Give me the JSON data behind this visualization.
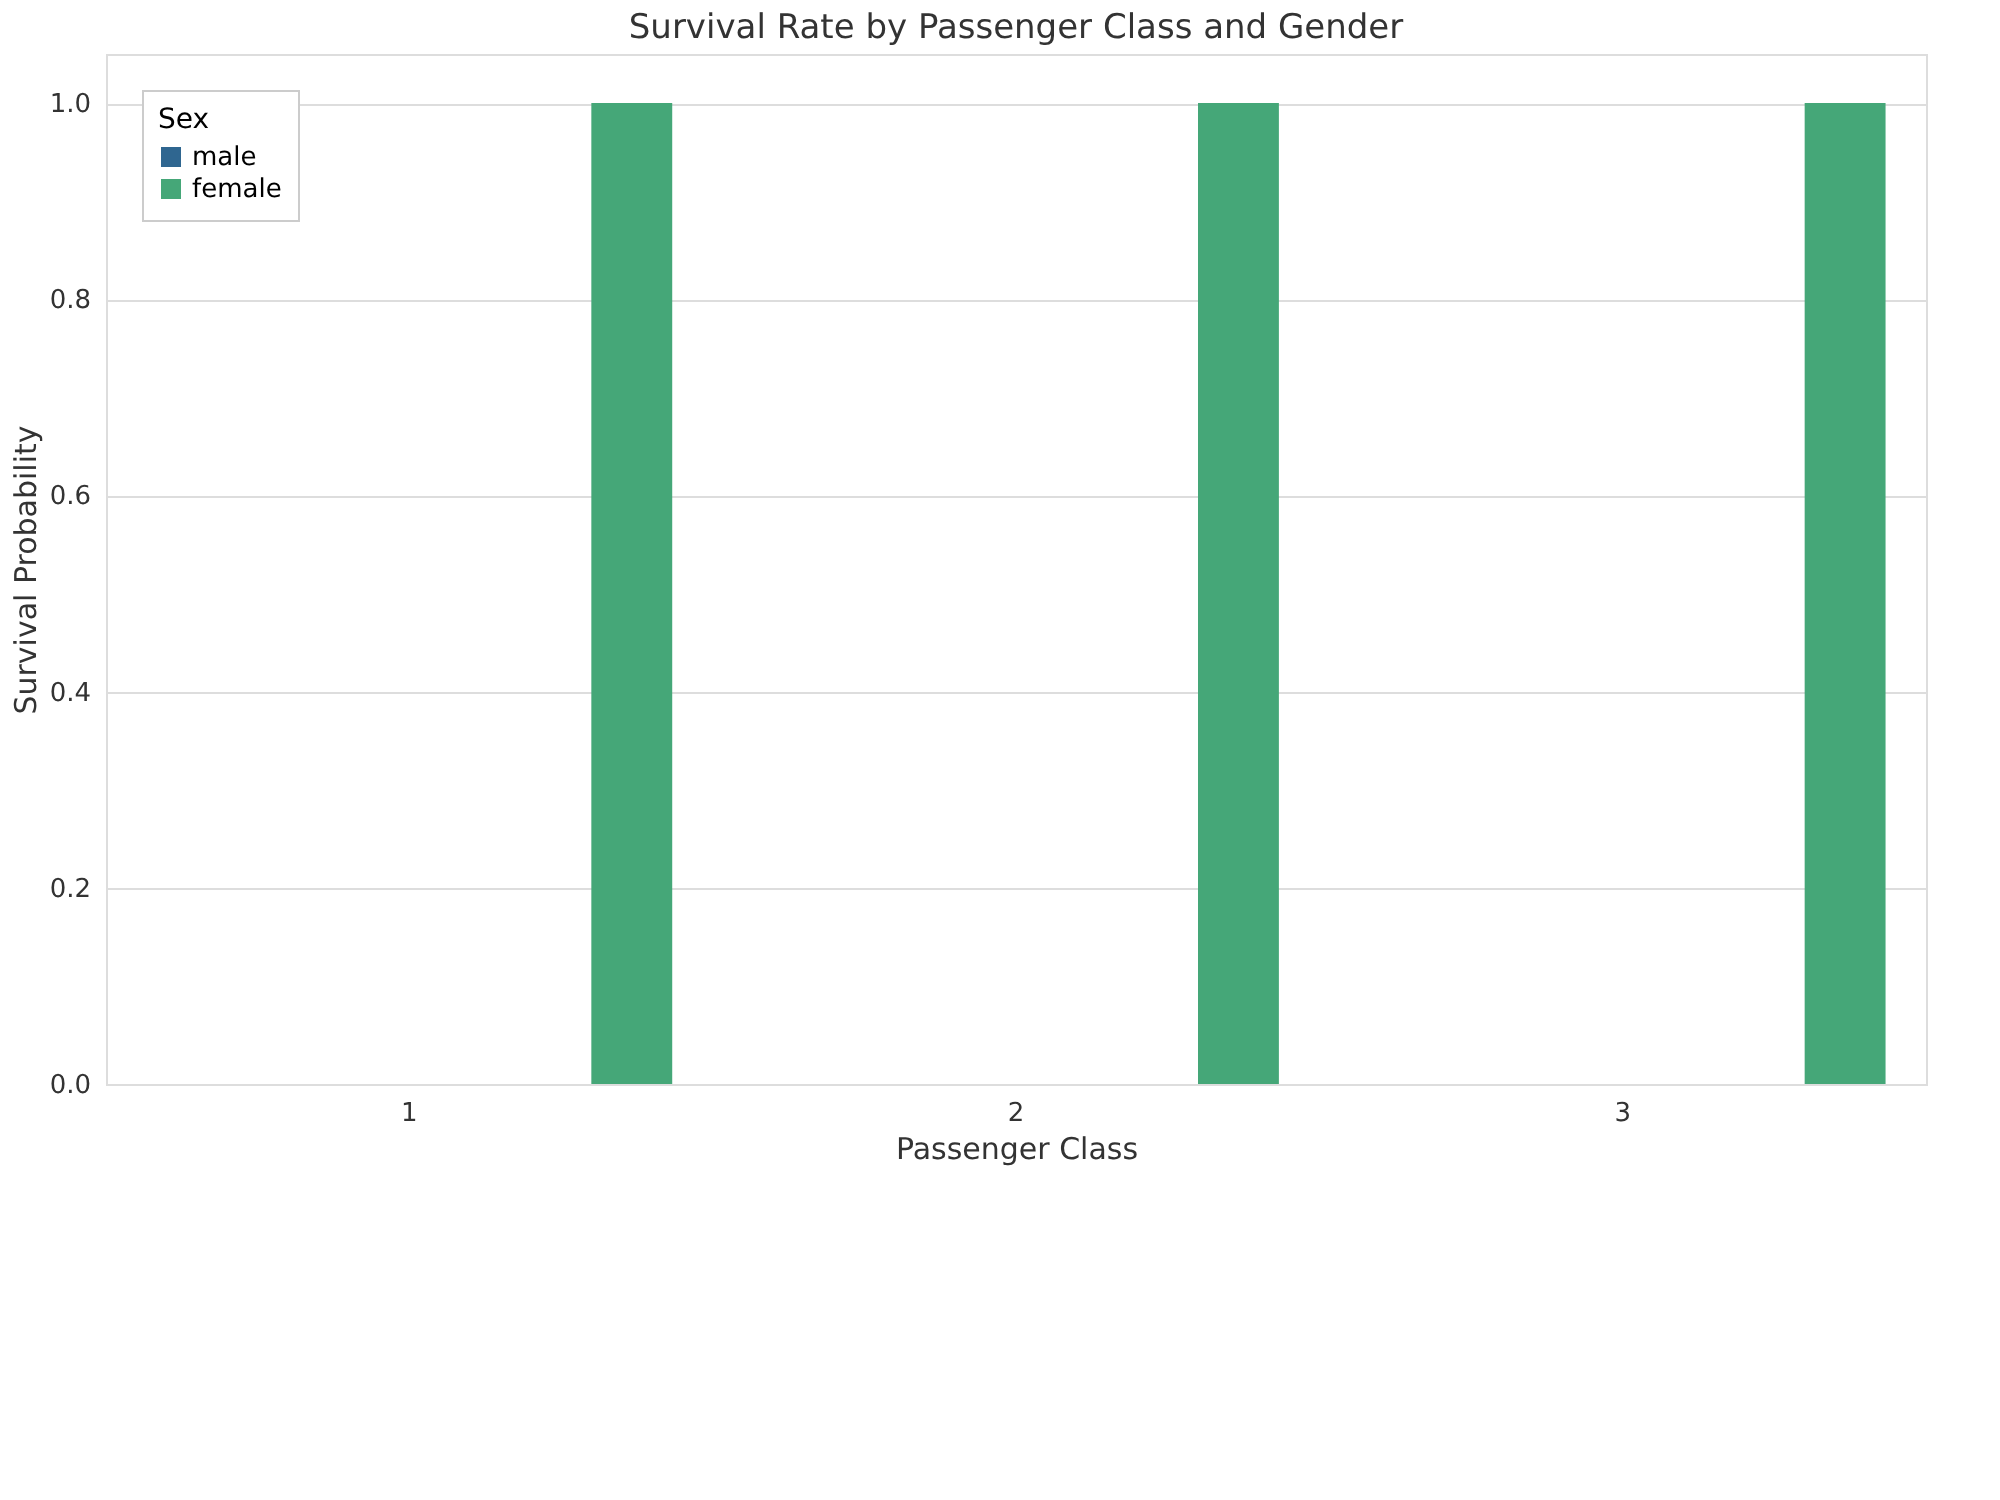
{
  "chart_data": {
    "type": "bar",
    "title": "Survival Rate by Passenger Class and Gender",
    "xlabel": "Passenger Class",
    "ylabel": "Survival Probability",
    "legend_title": "Sex",
    "categories": [
      "1",
      "2",
      "3"
    ],
    "series": [
      {
        "name": "male",
        "color": "#2f6690",
        "values": [
          0,
          0,
          0
        ]
      },
      {
        "name": "female",
        "color": "#45a778",
        "values": [
          1.0,
          1.0,
          1.0
        ]
      }
    ],
    "ylim": [
      0,
      1.05
    ],
    "yticks": [
      {
        "value": 0,
        "label": "0.0"
      },
      {
        "value": 0.2,
        "label": "0.2"
      },
      {
        "value": 0.4,
        "label": "0.4"
      },
      {
        "value": 0.6,
        "label": "0.6"
      },
      {
        "value": 0.8,
        "label": "0.8"
      },
      {
        "value": 1.0,
        "label": "1.0"
      }
    ],
    "grid": "y",
    "legend": "top left"
  }
}
